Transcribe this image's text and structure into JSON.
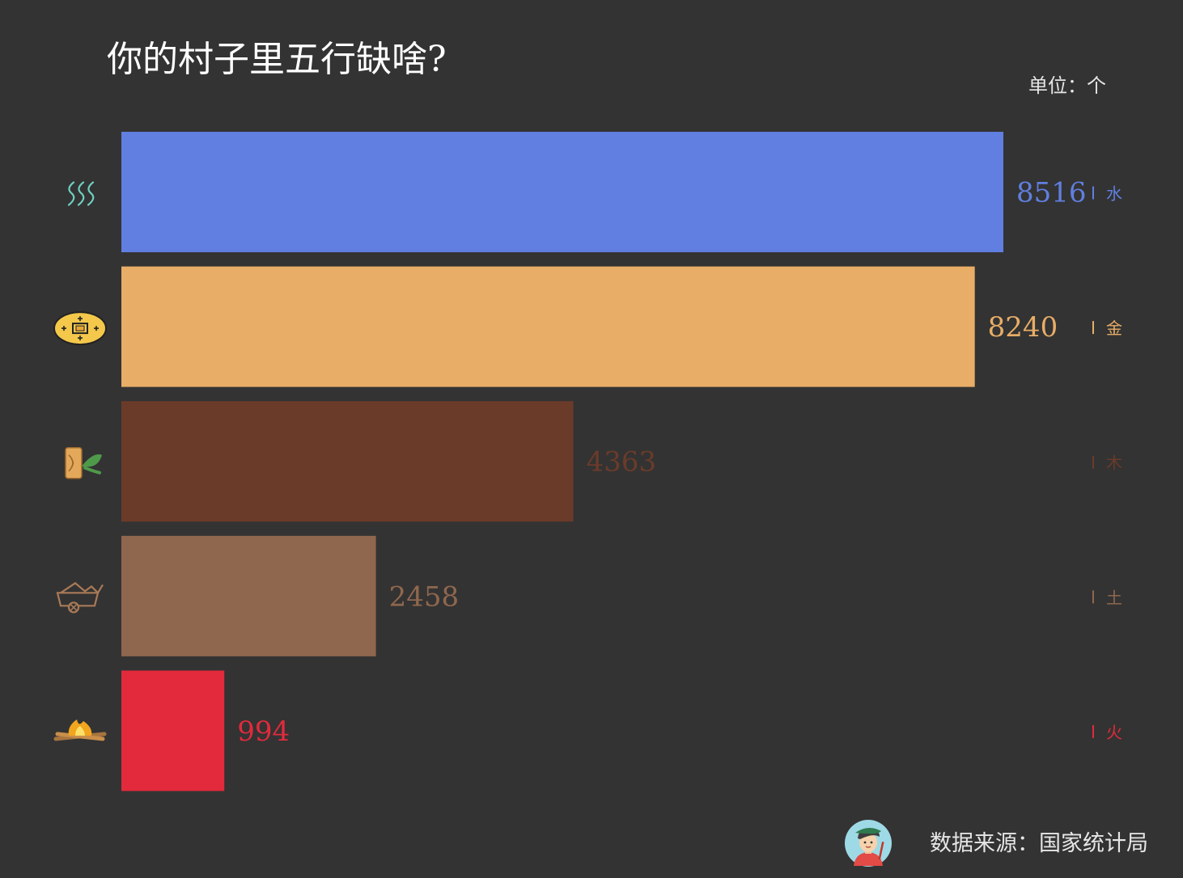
{
  "title": "你的村子里五行缺啥?",
  "unit": "单位：个",
  "source": "数据来源：国家统计局",
  "chart_data": {
    "type": "bar",
    "orientation": "horizontal",
    "title": "你的村子里五行缺啥?",
    "categories": [
      "水",
      "金",
      "木",
      "土",
      "火"
    ],
    "values": [
      8516,
      8240,
      4363,
      2458,
      994
    ],
    "colors": [
      "#617fe0",
      "#e8ad67",
      "#6b3b2a",
      "#8f674e",
      "#e22a3c"
    ],
    "icons": [
      "water-waves-icon",
      "gold-coin-icon",
      "wood-log-leaf-icon",
      "earth-cart-icon",
      "fire-campfire-icon"
    ],
    "xlim": [
      0,
      8516
    ],
    "grid": false,
    "legend": "none"
  }
}
